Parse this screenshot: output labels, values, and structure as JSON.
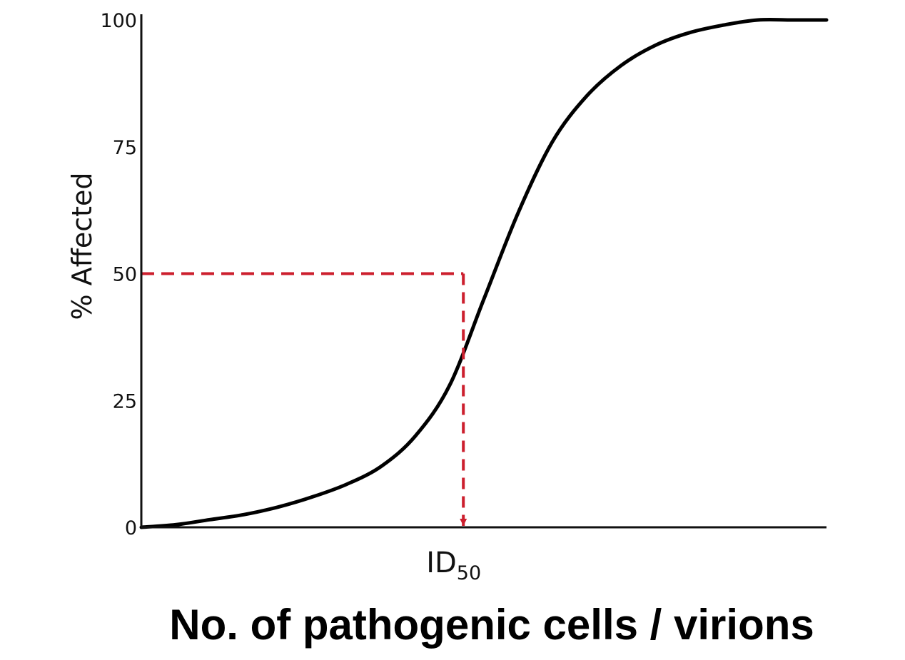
{
  "chart_data": {
    "type": "line",
    "title": "",
    "xlabel": "No. of pathogenic cells / virions",
    "ylabel": "% Affected",
    "ylim": [
      0,
      100
    ],
    "yticks": [
      "0",
      "25",
      "50",
      "75",
      "100"
    ],
    "x_scale": "unlabeled (dose)",
    "grid": false,
    "legend": "none",
    "series": [
      {
        "x": [
          0,
          5,
          10,
          15,
          20,
          25,
          30,
          35,
          40,
          45,
          50,
          55,
          60,
          65,
          70,
          75,
          80,
          85,
          90,
          95,
          100
        ],
        "values": [
          0,
          0.5,
          1.5,
          2.5,
          4,
          6,
          8.5,
          12,
          18,
          28,
          45,
          62,
          76,
          85,
          91,
          95,
          97.5,
          99,
          100,
          100,
          100
        ]
      }
    ],
    "annotations": [
      {
        "type": "reference-lines",
        "y": 50,
        "x": 47,
        "marker_label": "ID",
        "marker_subscript": "50",
        "color": "#cc1f2e"
      }
    ]
  },
  "colors": {
    "curve": "#000000",
    "axes": "#111111",
    "reference": "#cc1f2e"
  }
}
